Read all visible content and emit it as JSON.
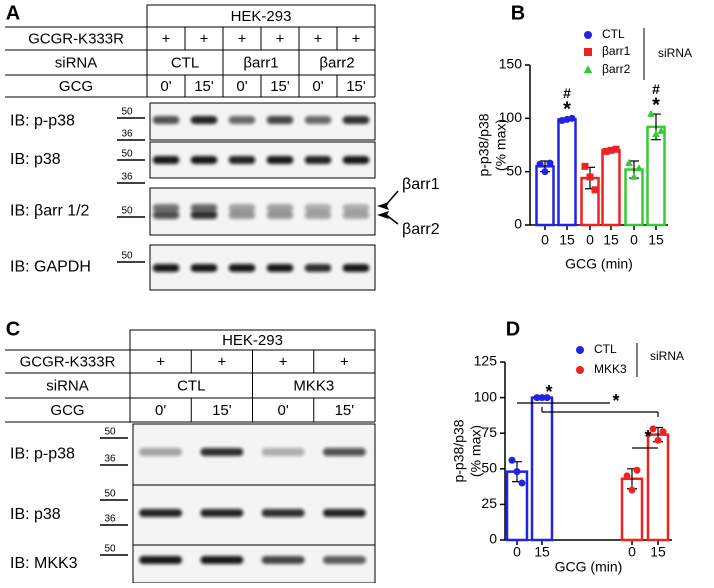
{
  "panels": [
    {
      "letter": "A",
      "cell_line": "HEK-293",
      "rows": [
        {
          "label": "GCGR-K333R",
          "cells": [
            "+",
            "+",
            "+",
            "+",
            "+",
            "+"
          ]
        },
        {
          "label": "siRNA",
          "cells": [
            "CTL",
            "βarr1",
            "βarr2"
          ]
        },
        {
          "label": "GCG",
          "cells": [
            "0'",
            "15'",
            "0'",
            "15'",
            "0'",
            "15'"
          ]
        }
      ],
      "blots": [
        {
          "label": "IB: p-p38",
          "markers": [
            "50",
            "36"
          ]
        },
        {
          "label": "IB: p38",
          "markers": [
            "50"
          ]
        },
        {
          "label": "IB: βarr 1/2",
          "markers": [
            "36",
            "50"
          ]
        },
        {
          "label": "IB: GAPDH",
          "markers": [
            "50"
          ]
        }
      ],
      "arrows": [
        "βarr1",
        "βarr2"
      ]
    },
    {
      "letter": "C",
      "cell_line": "HEK-293",
      "rows": [
        {
          "label": "GCGR-K333R",
          "cells": [
            "+",
            "+",
            "+",
            "+"
          ]
        },
        {
          "label": "siRNA",
          "cells": [
            "CTL",
            "MKK3"
          ]
        },
        {
          "label": "GCG",
          "cells": [
            "0'",
            "15'",
            "0'",
            "15'"
          ]
        }
      ],
      "blots": [
        {
          "label": "IB: p-p38",
          "markers": [
            "50",
            "36"
          ]
        },
        {
          "label": "IB: p38",
          "markers": [
            "50",
            "36"
          ]
        },
        {
          "label": "IB: MKK3",
          "markers": [
            "50"
          ]
        }
      ]
    }
  ],
  "chart_data": [
    {
      "type": "bar",
      "letter": "B",
      "ylabel": [
        "p-p38/p38",
        "(% max)"
      ],
      "xlabel": "GCG (min)",
      "categories": [
        "0",
        "15"
      ],
      "legend_title": "siRNA",
      "ylim": [
        0,
        150
      ],
      "yticks": [
        0,
        50,
        100,
        150
      ],
      "series": [
        {
          "name": "CTL",
          "color": "#2222e6",
          "marker": "circle",
          "values": [
            55,
            99
          ],
          "errors": [
            5,
            1
          ],
          "points": [
            [
              57,
              50,
              58
            ],
            [
              98,
              99,
              100
            ]
          ],
          "annotations": [
            null,
            [
              "#",
              "*"
            ]
          ]
        },
        {
          "name": "βarr1",
          "color": "#ee2222",
          "marker": "square",
          "values": [
            44,
            70
          ],
          "errors": [
            10,
            1
          ],
          "points": [
            [
              55,
              45,
              33
            ],
            [
              69,
              70,
              71
            ]
          ]
        },
        {
          "name": "βarr2",
          "color": "#33cc33",
          "marker": "triangle",
          "values": [
            52,
            92
          ],
          "errors": [
            8,
            12
          ],
          "points": [
            [
              58,
              45,
              53
            ],
            [
              104,
              85,
              88
            ]
          ],
          "annotations": [
            null,
            [
              "#",
              "*"
            ]
          ]
        }
      ]
    },
    {
      "type": "bar",
      "letter": "D",
      "ylabel": [
        "p-p38/p38",
        "(% max)"
      ],
      "xlabel": "GCG (min)",
      "categories": [
        "0",
        "15"
      ],
      "legend_title": "siRNA",
      "ylim": [
        0,
        125
      ],
      "yticks": [
        0,
        25,
        50,
        75,
        100,
        125
      ],
      "series": [
        {
          "name": "CTL",
          "color": "#2222e6",
          "marker": "circle",
          "values": [
            48,
            100
          ],
          "errors": [
            7,
            1
          ],
          "points": [
            [
              56,
              48,
              40
            ],
            [
              100,
              100,
              100
            ]
          ]
        },
        {
          "name": "MKK3",
          "color": "#ee2222",
          "marker": "circle",
          "values": [
            43,
            74
          ],
          "errors": [
            7,
            5
          ],
          "points": [
            [
              45,
              35,
              49
            ],
            [
              78,
              70,
              76
            ]
          ]
        }
      ],
      "brackets": [
        "*",
        "*",
        "*"
      ]
    }
  ]
}
